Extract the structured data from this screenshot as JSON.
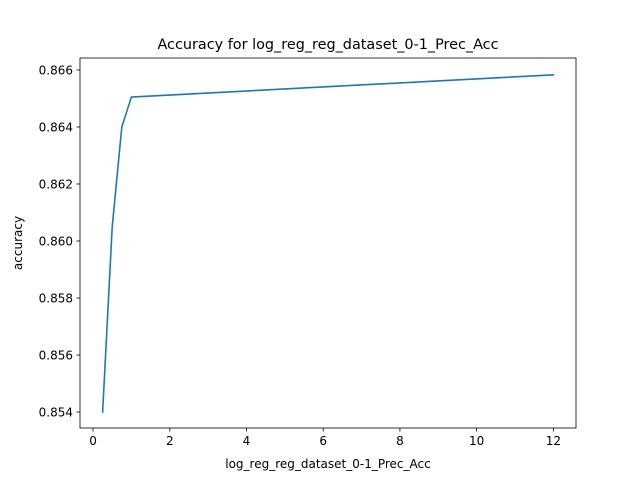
{
  "chart_data": {
    "type": "line",
    "title": "Accuracy for log_reg_reg_dataset_0-1_Prec_Acc",
    "xlabel": "log_reg_reg_dataset_0-1_Prec_Acc",
    "ylabel": "accuracy",
    "xlim": [
      -0.34,
      12.59
    ],
    "ylim": [
      0.85344,
      0.86642
    ],
    "xticks": [
      0,
      2,
      4,
      6,
      8,
      10,
      12
    ],
    "xtick_labels": [
      "0",
      "2",
      "4",
      "6",
      "8",
      "10",
      "12"
    ],
    "yticks": [
      0.854,
      0.856,
      0.858,
      0.86,
      0.862,
      0.864,
      0.866
    ],
    "ytick_labels": [
      "0.854",
      "0.856",
      "0.858",
      "0.860",
      "0.862",
      "0.864",
      "0.866"
    ],
    "grid": false,
    "series": [
      {
        "color": "#1f77b4",
        "x": [
          0.25,
          0.5,
          0.75,
          1.0,
          12.0
        ],
        "y": [
          0.854,
          0.8605,
          0.864,
          0.86505,
          0.86583
        ]
      }
    ]
  }
}
